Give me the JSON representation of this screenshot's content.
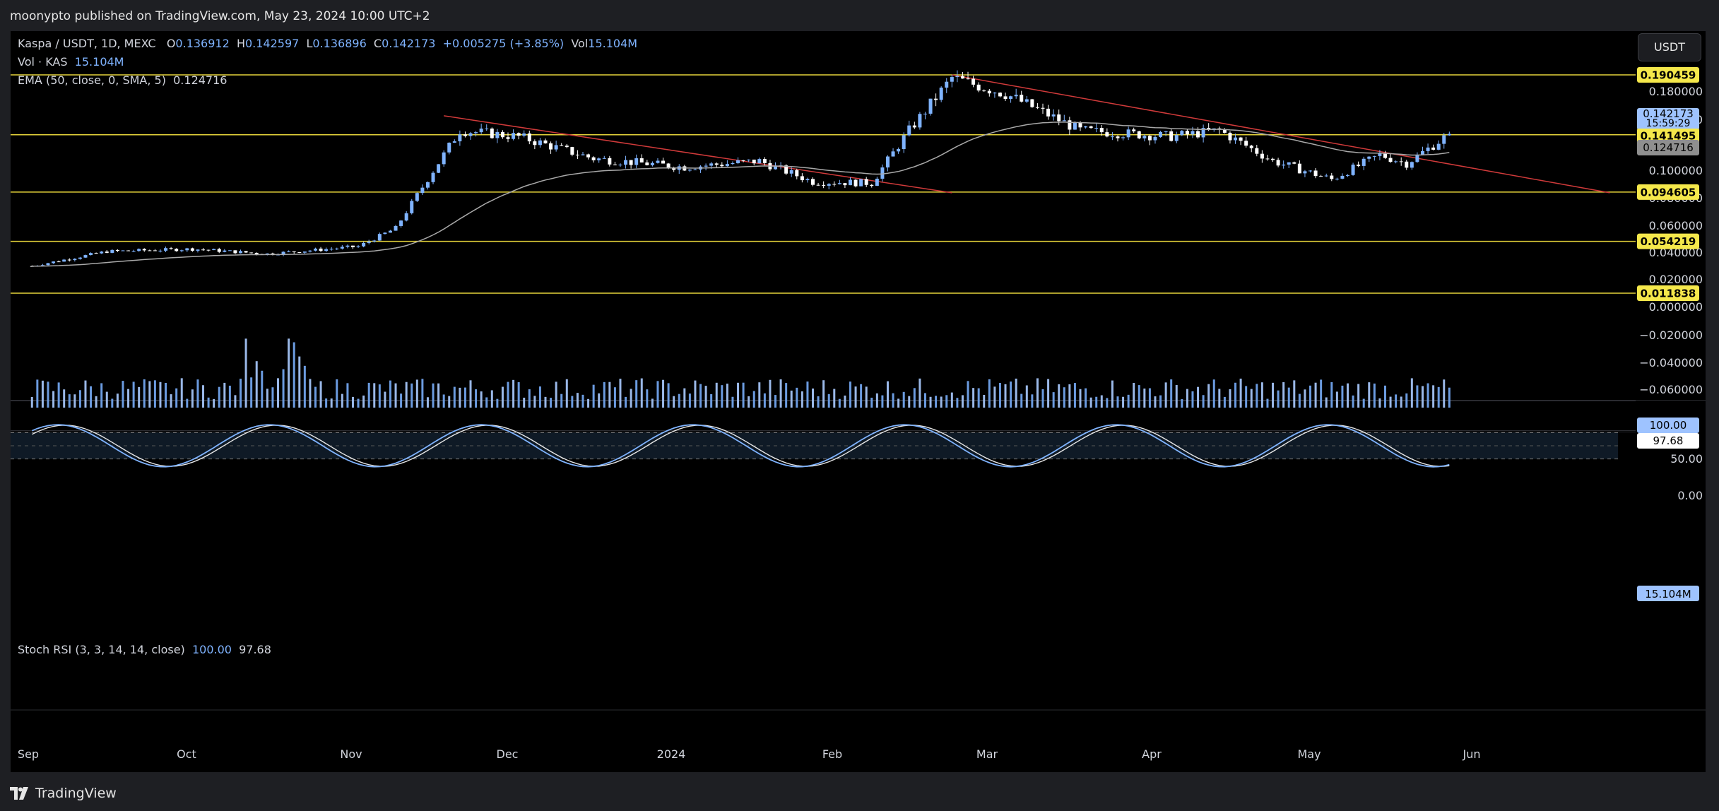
{
  "header": {
    "published": "moonypto published on TradingView.com, May 23, 2024 10:00 UTC+2"
  },
  "legend": {
    "symbol": "Kaspa / USDT, 1D, MEXC",
    "o_label": "O",
    "o": "0.136912",
    "h_label": "H",
    "h": "0.142597",
    "l_label": "L",
    "l": "0.136896",
    "c_label": "C",
    "c": "0.142173",
    "change": "+0.005275 (+3.85%)",
    "vol_label": "Vol",
    "vol": "15.104M",
    "vol_line_label": "Vol · KAS",
    "vol_line_value": "15.104M",
    "ema_label": "EMA (50, close, 0, SMA, 5)",
    "ema_value": "0.124716",
    "stoch_label": "Stoch RSI (3, 3, 14, 14, close)",
    "stoch_k": "100.00",
    "stoch_d": "97.68"
  },
  "currency_button": "USDT",
  "footer": {
    "brand": "TradingView"
  },
  "colors": {
    "up": "#7fb3ff",
    "down": "#ffffff",
    "hline": "#e6d43a",
    "trendline": "#d03a3a",
    "ema": "#a8a8a8",
    "stoch_k": "#7fb3ff",
    "stoch_d": "#e6e6e6"
  },
  "chart_data": {
    "type": "candlestick",
    "x_labels": [
      "Sep",
      "Oct",
      "Nov",
      "Dec",
      "2024",
      "Feb",
      "Mar",
      "Apr",
      "May",
      "Jun"
    ],
    "price_axis": {
      "ticks": [
        "0.180000",
        "0.160000",
        "0.100000",
        "0.080000",
        "0.060000",
        "0.040000",
        "0.020000",
        "0.000000",
        "−0.020000",
        "−0.040000",
        "−0.060000"
      ],
      "tick_values": [
        0.18,
        0.16,
        0.1,
        0.08,
        0.06,
        0.04,
        0.02,
        0.0,
        -0.02,
        -0.04,
        -0.06
      ],
      "ylim": [
        -0.07,
        0.2
      ]
    },
    "horizontal_levels": [
      {
        "value": 0.190459,
        "label": "0.190459"
      },
      {
        "value": 0.141495,
        "label": "0.141495"
      },
      {
        "value": 0.094605,
        "label": "0.094605"
      },
      {
        "value": 0.054219,
        "label": "0.054219"
      },
      {
        "value": 0.011838,
        "label": "0.011838"
      }
    ],
    "last_price": {
      "value": 0.142173,
      "label": "0.142173",
      "countdown": "15:59:29"
    },
    "ema_tag": {
      "value": 0.124716,
      "label": "0.124716"
    },
    "volume_tag": "15.104M",
    "trendlines": [
      {
        "from": {
          "date": "2023-11-17",
          "price": 0.157
        },
        "to": {
          "date": "2024-02-20",
          "price": 0.094
        }
      },
      {
        "from": {
          "date": "2024-02-20",
          "price": 0.1905
        },
        "to": {
          "date": "2024-06-22",
          "price": 0.094
        }
      }
    ],
    "series_key_points": [
      [
        "2023-09-01",
        0.034
      ],
      [
        "2023-09-15",
        0.046
      ],
      [
        "2023-10-01",
        0.048
      ],
      [
        "2023-10-15",
        0.044
      ],
      [
        "2023-11-01",
        0.05
      ],
      [
        "2023-11-08",
        0.065
      ],
      [
        "2023-11-12",
        0.092
      ],
      [
        "2023-11-15",
        0.112
      ],
      [
        "2023-11-20",
        0.145
      ],
      [
        "2023-12-01",
        0.14
      ],
      [
        "2023-12-15",
        0.122
      ],
      [
        "2024-01-01",
        0.115
      ],
      [
        "2024-01-15",
        0.12
      ],
      [
        "2024-01-25",
        0.103
      ],
      [
        "2024-02-05",
        0.102
      ],
      [
        "2024-02-12",
        0.145
      ],
      [
        "2024-02-20",
        0.188
      ],
      [
        "2024-03-01",
        0.175
      ],
      [
        "2024-03-15",
        0.145
      ],
      [
        "2024-04-01",
        0.14
      ],
      [
        "2024-04-10",
        0.145
      ],
      [
        "2024-04-20",
        0.12
      ],
      [
        "2024-05-01",
        0.105
      ],
      [
        "2024-05-10",
        0.125
      ],
      [
        "2024-05-15",
        0.118
      ],
      [
        "2024-05-23",
        0.142
      ]
    ],
    "stoch_axis": {
      "ticks": [
        "100.00",
        "50.00",
        "0.00"
      ],
      "k": "100.00",
      "d": "97.68"
    },
    "grid": false
  }
}
